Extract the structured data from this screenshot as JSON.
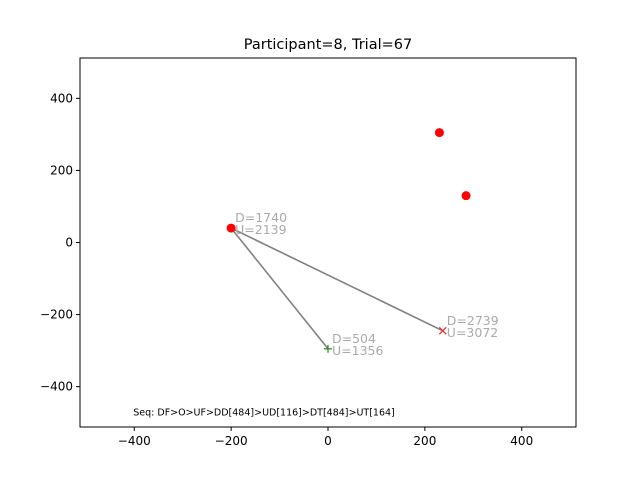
{
  "chart_data": {
    "type": "scatter",
    "title": "Participant=8, Trial=67",
    "xlabel": "",
    "ylabel": "",
    "xlim": [
      -512,
      512
    ],
    "ylim": [
      -512,
      512
    ],
    "xticks": [
      -400,
      -200,
      0,
      200,
      400
    ],
    "yticks": [
      -400,
      -200,
      0,
      200,
      400
    ],
    "xtick_labels": [
      "−400",
      "−200",
      "0",
      "200",
      "400"
    ],
    "ytick_labels": [
      "−400",
      "−200",
      "0",
      "200",
      "400"
    ],
    "grid": false,
    "targets": [
      {
        "x": -200,
        "y": 40
      },
      {
        "x": 230,
        "y": 305
      },
      {
        "x": 285,
        "y": 130
      }
    ],
    "start_point": {
      "x": 0,
      "y": -295,
      "marker": "+"
    },
    "end_point": {
      "x": 237,
      "y": -245,
      "marker": "x"
    },
    "path": [
      {
        "x": 0,
        "y": -295
      },
      {
        "x": -200,
        "y": 40
      },
      {
        "x": 237,
        "y": -245
      }
    ],
    "annotations": [
      {
        "x": -200,
        "y": 40,
        "lines": [
          "D=1740",
          "U=2139"
        ]
      },
      {
        "x": 0,
        "y": -295,
        "lines": [
          "D=504",
          "U=1356"
        ]
      },
      {
        "x": 237,
        "y": -245,
        "lines": [
          "D=2739",
          "U=3072"
        ]
      }
    ],
    "footer_note": "Seq: DF>O>UF>DD[484]>UD[116]>DT[484]>UT[164]",
    "colors": {
      "target": "#ff0000",
      "path": "#808080",
      "start": "#2e8b2e",
      "end": "#e03030",
      "annotation": "#aaaaaa",
      "axis": "#000000"
    }
  }
}
